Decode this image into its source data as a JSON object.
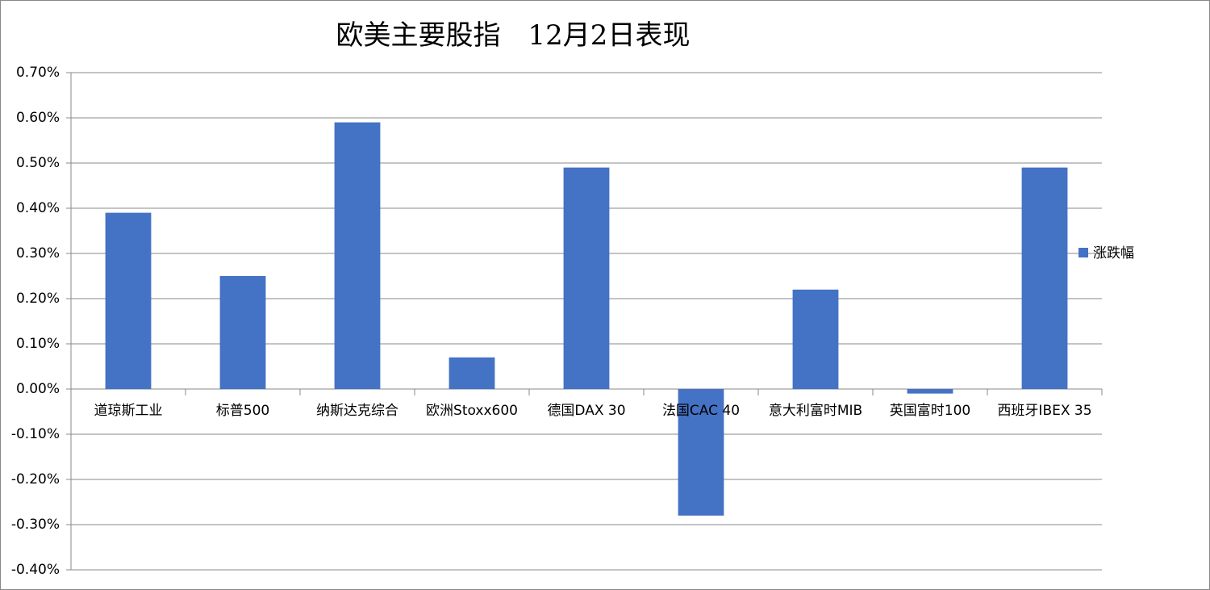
{
  "chart_data": {
    "type": "bar",
    "title": "欧美主要股指　12月2日表现",
    "categories": [
      "道琼斯工业",
      "标普500",
      "纳斯达克综合",
      "欧洲Stoxx600",
      "德国DAX 30",
      "法国CAC 40",
      "意大利富时MIB",
      "英国富时100",
      "西班牙IBEX 35"
    ],
    "series": [
      {
        "name": "涨跌幅",
        "color": "#4472c4",
        "values": [
          0.39,
          0.25,
          0.59,
          0.07,
          0.49,
          -0.28,
          0.22,
          -0.01,
          0.49
        ]
      }
    ],
    "ylim": [
      -0.4,
      0.7
    ],
    "yticks": [
      {
        "value": -0.4,
        "label": "-0.40%"
      },
      {
        "value": -0.3,
        "label": "-0.30%"
      },
      {
        "value": -0.2,
        "label": "-0.20%"
      },
      {
        "value": -0.1,
        "label": "-0.10%"
      },
      {
        "value": 0,
        "label": "0.00%"
      },
      {
        "value": 0.1,
        "label": "0.10%"
      },
      {
        "value": 0.2,
        "label": "0.20%"
      },
      {
        "value": 0.3,
        "label": "0.30%"
      },
      {
        "value": 0.4,
        "label": "0.40%"
      },
      {
        "value": 0.5,
        "label": "0.50%"
      },
      {
        "value": 0.6,
        "label": "0.60%"
      },
      {
        "value": 0.7,
        "label": "0.70%"
      }
    ],
    "grid": true,
    "legend": "right"
  }
}
